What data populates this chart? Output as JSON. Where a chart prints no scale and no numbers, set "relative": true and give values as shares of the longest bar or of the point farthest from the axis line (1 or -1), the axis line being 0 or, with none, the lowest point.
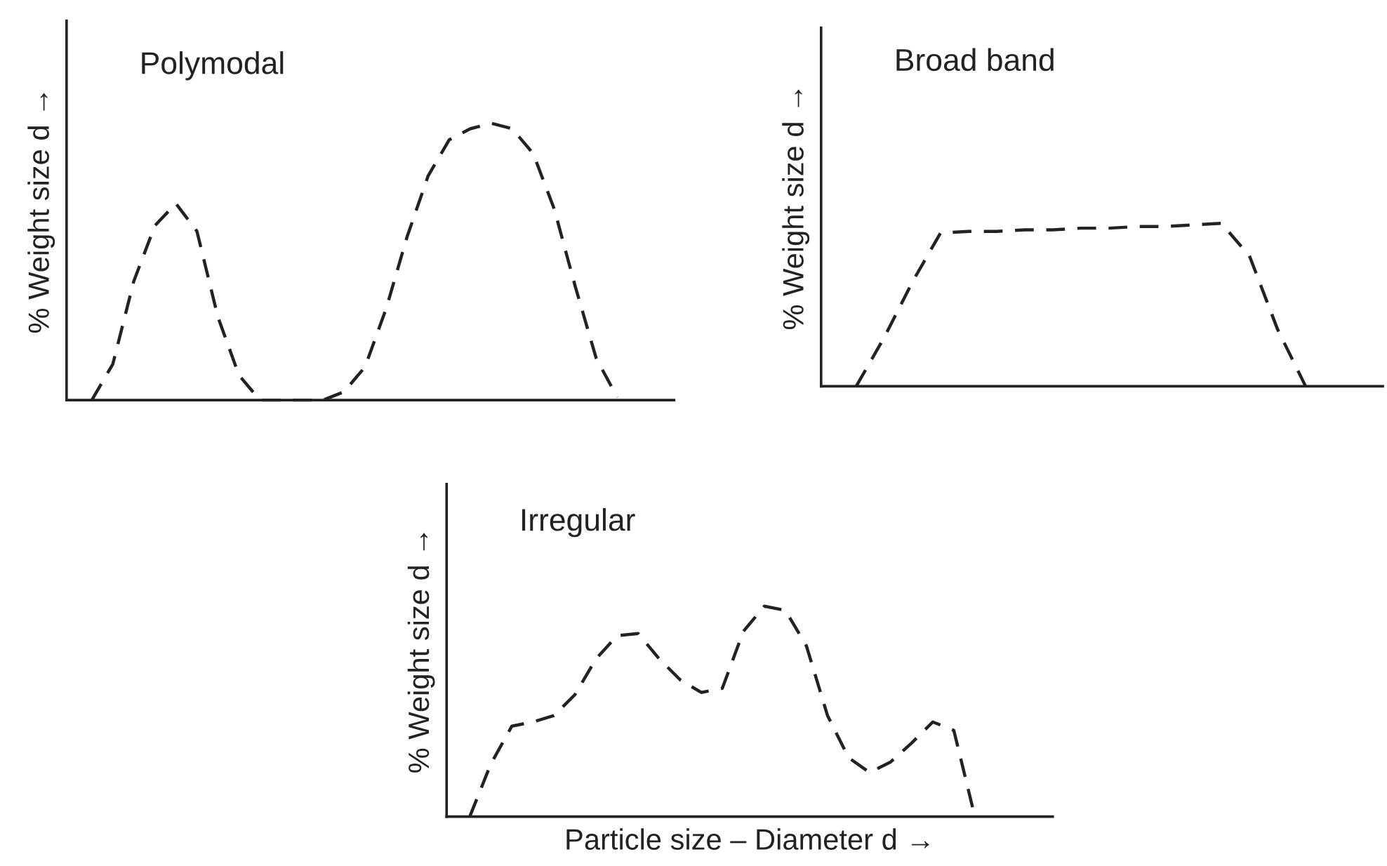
{
  "chart_data": [
    {
      "type": "line",
      "title": "Polymodal",
      "ylabel": "% Weight size d →",
      "relative": true,
      "tick_labels": false,
      "line_style": "dashed",
      "marker": "none",
      "categories": [
        null,
        null,
        null,
        null,
        null,
        null,
        null,
        null,
        null,
        null,
        null,
        null,
        null,
        null,
        null,
        null,
        null,
        null,
        null,
        null,
        null,
        null,
        null,
        null,
        null,
        null
      ],
      "series": [
        {
          "color": "#222222",
          "values": [
            0,
            0.13,
            0.43,
            0.63,
            0.71,
            0.61,
            0.3,
            0.09,
            0.0,
            0,
            0,
            0,
            0.03,
            0.12,
            0.33,
            0.59,
            0.81,
            0.94,
            0.98,
            1.0,
            0.98,
            0.89,
            0.69,
            0.41,
            0.15,
            0.01
          ]
        }
      ]
    },
    {
      "type": "line",
      "title": "Broad band",
      "ylabel": "% Weight size d →",
      "relative": true,
      "tick_labels": false,
      "line_style": "dashed",
      "marker": "none",
      "categories": [
        null,
        null,
        null,
        null,
        null,
        null,
        null,
        null,
        null,
        null,
        null,
        null,
        null,
        null,
        null,
        null,
        null
      ],
      "series": [
        {
          "color": "#222222",
          "values": [
            0,
            0.3,
            0.64,
            0.94,
            0.95,
            0.95,
            0.96,
            0.96,
            0.97,
            0.97,
            0.98,
            0.98,
            0.99,
            1.0,
            0.8,
            0.35,
            0
          ]
        }
      ]
    },
    {
      "type": "line",
      "title": "Irregular",
      "xlabel": "Particle size – Diameter d →",
      "ylabel": "% Weight size d →",
      "relative": true,
      "tick_labels": false,
      "line_style": "dashed",
      "marker": "none",
      "categories": [
        null,
        null,
        null,
        null,
        null,
        null,
        null,
        null,
        null,
        null,
        null,
        null,
        null,
        null,
        null,
        null,
        null,
        null,
        null,
        null,
        null,
        null,
        null,
        null,
        null
      ],
      "series": [
        {
          "color": "#222222",
          "values": [
            0,
            0.25,
            0.43,
            0.45,
            0.48,
            0.58,
            0.75,
            0.86,
            0.87,
            0.75,
            0.65,
            0.59,
            0.61,
            0.88,
            1.0,
            0.98,
            0.81,
            0.48,
            0.28,
            0.21,
            0.26,
            0.35,
            0.45,
            0.41,
            0
          ]
        }
      ]
    }
  ]
}
